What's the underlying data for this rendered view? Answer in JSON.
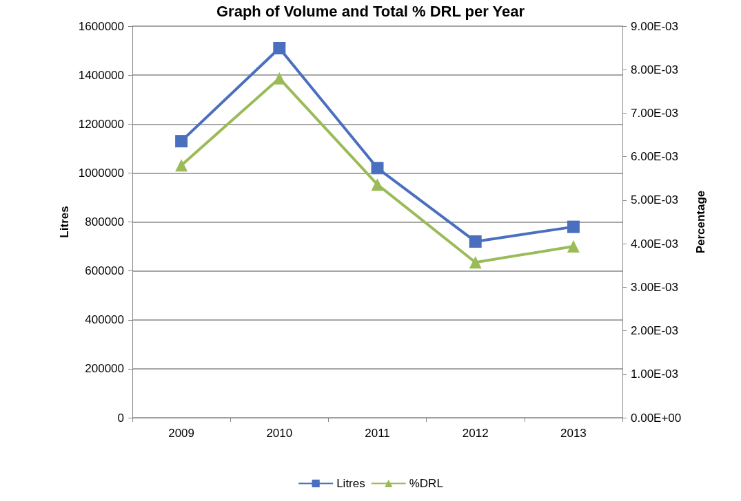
{
  "chart_data": {
    "type": "line",
    "title": "Graph of Volume and Total % DRL per Year",
    "categories": [
      "2009",
      "2010",
      "2011",
      "2012",
      "2013"
    ],
    "series": [
      {
        "name": "Litres",
        "color": "#4a6fbf",
        "marker": "square",
        "values": [
          1130000,
          1510000,
          1020000,
          720000,
          780000
        ]
      },
      {
        "name": "%DRL",
        "color": "#9bbb59",
        "marker": "triangle",
        "axis": "y2",
        "values": [
          0.0058,
          0.0078,
          0.00536,
          0.00357,
          0.00394
        ]
      }
    ],
    "ylabel": "Litres",
    "y2label": "Percentage",
    "ylim": [
      0,
      1600000
    ],
    "yticks": [
      0,
      200000,
      400000,
      600000,
      800000,
      1000000,
      1200000,
      1400000,
      1600000
    ],
    "y2lim": [
      0,
      0.009
    ],
    "y2ticks": [
      {
        "value": 0,
        "label": "0.00E+00"
      },
      {
        "value": 0.001,
        "label": "1.00E-03"
      },
      {
        "value": 0.002,
        "label": "2.00E-03"
      },
      {
        "value": 0.003,
        "label": "3.00E-03"
      },
      {
        "value": 0.004,
        "label": "4.00E-03"
      },
      {
        "value": 0.005,
        "label": "5.00E-03"
      },
      {
        "value": 0.006,
        "label": "6.00E-03"
      },
      {
        "value": 0.007,
        "label": "7.00E-03"
      },
      {
        "value": 0.008,
        "label": "8.00E-03"
      },
      {
        "value": 0.009,
        "label": "9.00E-03"
      }
    ],
    "grid": "y",
    "legend": "bottom",
    "line_style": "solid"
  }
}
